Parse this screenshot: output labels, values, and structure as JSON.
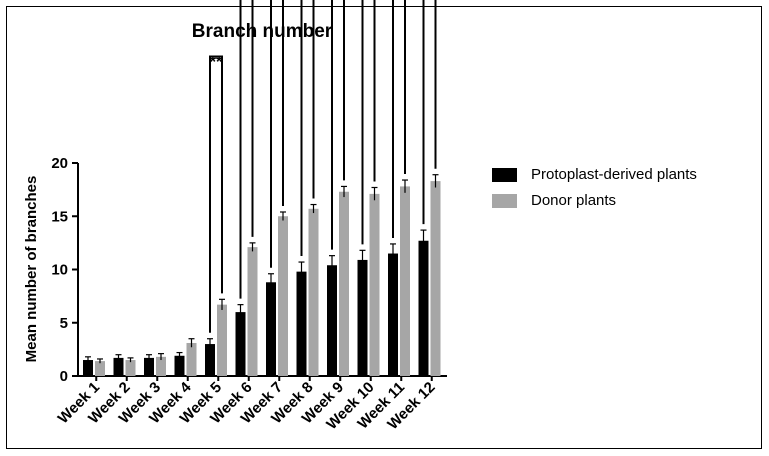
{
  "chart_data": {
    "type": "bar",
    "title": "Branch number",
    "xlabel": "",
    "ylabel": "Mean number of branches",
    "ylim": [
      0,
      20
    ],
    "yticks": [
      0,
      5,
      10,
      15,
      20
    ],
    "grid": false,
    "legend_position": "right",
    "categories": [
      "Week 1",
      "Week 2",
      "Week 3",
      "Week 4",
      "Week 5",
      "Week 6",
      "Week 7",
      "Week 8",
      "Week 9",
      "Week 10",
      "Week 11",
      "Week 12"
    ],
    "series": [
      {
        "name": "Protoplast-derived plants",
        "color": "#000000",
        "values": [
          1.5,
          1.7,
          1.7,
          1.9,
          3.0,
          6.0,
          8.8,
          9.8,
          10.4,
          10.9,
          11.5,
          12.7
        ],
        "errors": [
          0.3,
          0.3,
          0.3,
          0.3,
          0.5,
          0.7,
          0.8,
          0.9,
          0.9,
          0.9,
          0.9,
          1.0
        ]
      },
      {
        "name": "Donor plants",
        "color": "#a6a6a6",
        "values": [
          1.4,
          1.5,
          1.8,
          3.1,
          6.7,
          12.1,
          15.0,
          15.7,
          17.3,
          17.1,
          17.8,
          18.3
        ],
        "errors": [
          0.2,
          0.2,
          0.3,
          0.4,
          0.5,
          0.4,
          0.4,
          0.4,
          0.5,
          0.6,
          0.6,
          0.6
        ]
      }
    ],
    "significance": [
      {
        "category": "Week 5",
        "label": "**"
      },
      {
        "category": "Week 6",
        "label": "****"
      },
      {
        "category": "Week 7",
        "label": "****"
      },
      {
        "category": "Week 8",
        "label": "****"
      },
      {
        "category": "Week 9",
        "label": "****"
      },
      {
        "category": "Week 10",
        "label": "****"
      },
      {
        "category": "Week 11",
        "label": "****"
      },
      {
        "category": "Week 12",
        "label": "****"
      }
    ]
  }
}
